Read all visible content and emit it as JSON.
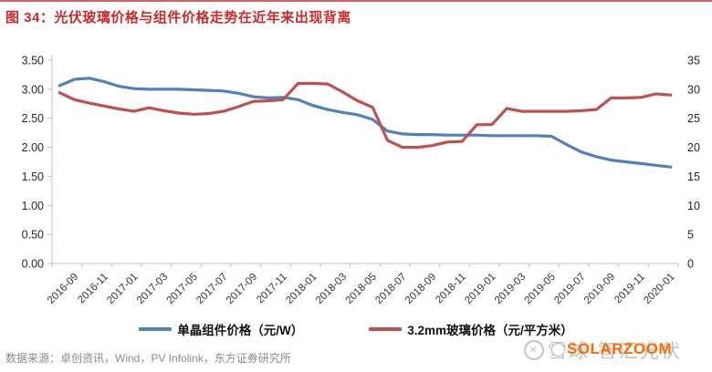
{
  "page": {
    "title": "图 34：光伏玻璃价格与组件价格走势在近年来出现背离",
    "title_color": "#CC2A2A",
    "top_rule_color": "#CC6666",
    "source": "数据来源：卓创资讯，Wind，PV Infolink，东方证券研究所"
  },
  "watermark": {
    "site_text": "雪球·智汇光伏",
    "brand_text": "SOLARZOOM",
    "brand_color": "#FF6A00"
  },
  "chart_data": {
    "type": "line",
    "title": "图 34：光伏玻璃价格与组件价格走势在近年来出现背离",
    "x": [
      "2016-09",
      "2016-10",
      "2016-11",
      "2016-12",
      "2017-01",
      "2017-02",
      "2017-03",
      "2017-04",
      "2017-05",
      "2017-06",
      "2017-07",
      "2017-08",
      "2017-09",
      "2017-10",
      "2017-11",
      "2017-12",
      "2018-01",
      "2018-02",
      "2018-03",
      "2018-04",
      "2018-05",
      "2018-06",
      "2018-07",
      "2018-08",
      "2018-09",
      "2018-10",
      "2018-11",
      "2018-12",
      "2019-01",
      "2019-02",
      "2019-03",
      "2019-04",
      "2019-05",
      "2019-06",
      "2019-07",
      "2019-08",
      "2019-09",
      "2019-10",
      "2019-11",
      "2019-12",
      "2020-01",
      "2020-02"
    ],
    "x_tick_labels": [
      "2016-09",
      "2016-11",
      "2017-01",
      "2017-03",
      "2017-05",
      "2017-07",
      "2017-09",
      "2017-11",
      "2018-01",
      "2018-03",
      "2018-05",
      "2018-07",
      "2018-09",
      "2018-11",
      "2019-01",
      "2019-03",
      "2019-05",
      "2019-07",
      "2019-09",
      "2019-11",
      "2020-01"
    ],
    "series": [
      {
        "name": "单晶组件价格（元/W）",
        "axis": "left",
        "color": "#4F81BD",
        "values": [
          3.06,
          3.17,
          3.19,
          3.13,
          3.05,
          3.01,
          3.0,
          3.0,
          3.0,
          2.99,
          2.98,
          2.97,
          2.93,
          2.87,
          2.85,
          2.86,
          2.82,
          2.72,
          2.65,
          2.6,
          2.56,
          2.48,
          2.28,
          2.23,
          2.22,
          2.22,
          2.21,
          2.21,
          2.21,
          2.2,
          2.2,
          2.2,
          2.2,
          2.19,
          2.05,
          1.92,
          1.84,
          1.78,
          1.75,
          1.72,
          1.69,
          1.66
        ]
      },
      {
        "name": "3.2mm玻璃价格（元/平方米）",
        "axis": "right",
        "color": "#C0504D",
        "values": [
          29.4,
          28.2,
          27.6,
          27.1,
          26.6,
          26.2,
          26.8,
          26.3,
          25.9,
          25.7,
          25.8,
          26.2,
          27.0,
          27.9,
          28.0,
          28.2,
          31.0,
          31.0,
          30.9,
          29.5,
          28.0,
          26.9,
          21.2,
          20.0,
          20.0,
          20.3,
          20.9,
          21.0,
          23.9,
          23.9,
          26.7,
          26.2,
          26.2,
          26.2,
          26.2,
          26.3,
          26.5,
          28.5,
          28.5,
          28.6,
          29.2,
          29.0
        ]
      }
    ],
    "left_axis": {
      "min": 0,
      "max": 3.5,
      "step": 0.5,
      "tick_labels": [
        "0.00",
        "0.50",
        "1.00",
        "1.50",
        "2.00",
        "2.50",
        "3.00",
        "3.50"
      ]
    },
    "right_axis": {
      "min": 0,
      "max": 35,
      "step": 5,
      "tick_labels": [
        "0",
        "5",
        "10",
        "15",
        "20",
        "25",
        "30",
        "35"
      ]
    },
    "grid": false,
    "legend_position": "bottom"
  }
}
